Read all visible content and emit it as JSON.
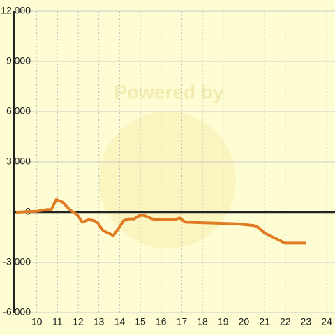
{
  "chart_data": {
    "type": "line",
    "watermark": "Powered by",
    "x": [
      9,
      10,
      10.47,
      10.7,
      10.94,
      11.24,
      11.64,
      11.95,
      12.2,
      12.5,
      12.75,
      12.95,
      13.2,
      13.7,
      13.96,
      14.2,
      14.45,
      14.7,
      14.97,
      15.2,
      15.47,
      15.7,
      16.64,
      16.9,
      17.18,
      19.66,
      20.5,
      20.74,
      21.0,
      22.0,
      23.0
    ],
    "series": [
      {
        "color": "#e07b24",
        "values": [
          0,
          50,
          150,
          150,
          750,
          600,
          100,
          -150,
          -600,
          -450,
          -500,
          -650,
          -1100,
          -1400,
          -950,
          -500,
          -400,
          -400,
          -200,
          -200,
          -350,
          -450,
          -450,
          -350,
          -600,
          -700,
          -800,
          -950,
          -1250,
          -1850,
          -1850
        ]
      }
    ],
    "xlim": [
      8.9,
      24.4
    ],
    "xticks": [
      10,
      11,
      12,
      13,
      14,
      15,
      16,
      17,
      18,
      19,
      20,
      21,
      22,
      23,
      24
    ],
    "ylim": [
      -6000,
      12000
    ],
    "yticks": [
      {
        "value": -6000,
        "label": "-6,000"
      },
      {
        "value": -3000,
        "label": "-3,000"
      },
      0,
      {
        "value": 3000,
        "label": "3,000"
      },
      {
        "value": 6000,
        "label": "6,000"
      },
      {
        "value": 9000,
        "label": "9,000"
      },
      {
        "value": 12000,
        "label": "12,000"
      }
    ],
    "grid": true
  }
}
